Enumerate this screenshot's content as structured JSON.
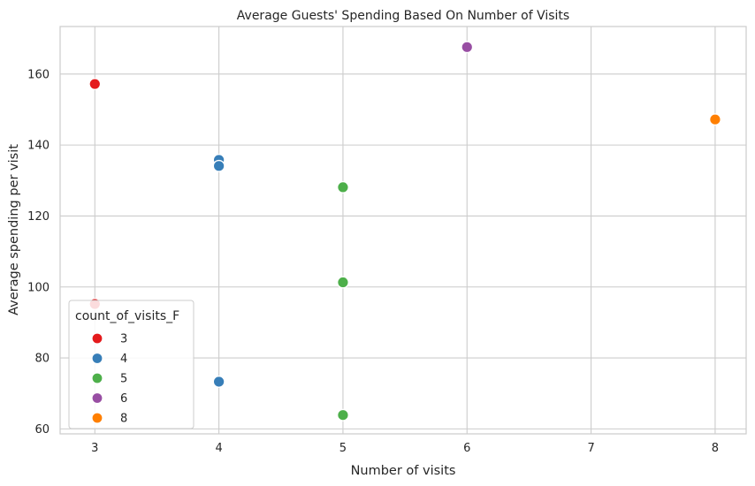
{
  "chart_data": {
    "type": "scatter",
    "title": "Average Guests' Spending Based On Number of Visits",
    "xlabel": "Number of visits",
    "ylabel": "Average spending per visit",
    "xlim": [
      2.72,
      8.25
    ],
    "ylim": [
      58.6,
      173.4
    ],
    "xticks": [
      3,
      4,
      5,
      6,
      7,
      8
    ],
    "yticks": [
      60,
      80,
      100,
      120,
      140,
      160
    ],
    "grid": true,
    "legend": {
      "title": "count_of_visits_F",
      "position": "lower-left",
      "entries": [
        {
          "label": "3",
          "color": "#e41a1c"
        },
        {
          "label": "4",
          "color": "#377eb8"
        },
        {
          "label": "5",
          "color": "#4daf4a"
        },
        {
          "label": "6",
          "color": "#984ea3"
        },
        {
          "label": "8",
          "color": "#ff7f00"
        }
      ]
    },
    "points": [
      {
        "x": 3,
        "y": 157.2,
        "group": "3"
      },
      {
        "x": 3,
        "y": 95.2,
        "group": "3"
      },
      {
        "x": 4,
        "y": 135.8,
        "group": "4"
      },
      {
        "x": 4,
        "y": 134.1,
        "group": "4"
      },
      {
        "x": 4,
        "y": 73.3,
        "group": "4"
      },
      {
        "x": 5,
        "y": 128.1,
        "group": "5"
      },
      {
        "x": 5,
        "y": 101.3,
        "group": "5"
      },
      {
        "x": 5,
        "y": 63.9,
        "group": "5"
      },
      {
        "x": 6,
        "y": 167.6,
        "group": "6"
      },
      {
        "x": 8,
        "y": 147.2,
        "group": "8"
      }
    ]
  }
}
